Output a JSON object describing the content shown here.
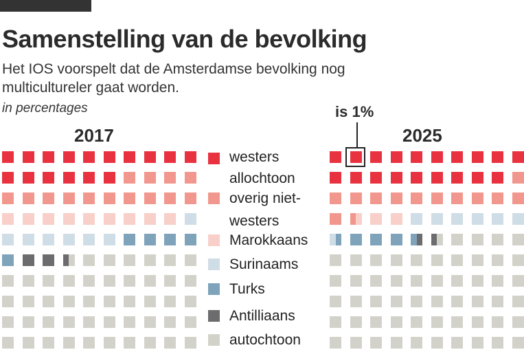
{
  "title": "Samenstelling van de bevolking",
  "subtitle_line1": "Het IOS voorspelt dat de Amsterdamse bevolking nog",
  "subtitle_line2": "multicultureler gaat worden.",
  "unit": "in percentages",
  "annotation": "is 1%",
  "colors": {
    "westers allochtoon": "#e8323f",
    "overig niet-westers": "#f2978d",
    "Marokkaans": "#f8cfc9",
    "Surinaams": "#cfdde6",
    "Turks": "#7ea3bb",
    "Antilliaans": "#6c6c6e",
    "autochtoon": "#d3d2ca"
  },
  "legend": [
    {
      "key": "westers allochtoon",
      "lines": [
        "westers",
        "allochtoon"
      ]
    },
    {
      "key": "overig niet-westers",
      "lines": [
        "overig niet-",
        "westers"
      ]
    },
    {
      "key": "Marokkaans",
      "lines": [
        "Marokkaans"
      ]
    },
    {
      "key": "Surinaams",
      "lines": [
        "Surinaams"
      ]
    },
    {
      "key": "Turks",
      "lines": [
        "Turks"
      ]
    },
    {
      "key": "Antilliaans",
      "lines": [
        "Antilliaans"
      ]
    },
    {
      "key": "autochtoon",
      "lines": [
        "autochtoon"
      ]
    }
  ],
  "chart_data": {
    "type": "waffle",
    "unit": "%",
    "categories": [
      "westers allochtoon",
      "overig niet-westers",
      "Marokkaans",
      "Surinaams",
      "Turks",
      "Antilliaans",
      "autochtoon"
    ],
    "series": [
      {
        "name": "2017",
        "values": [
          16,
          14,
          9,
          7,
          5,
          2.5,
          46.5
        ]
      },
      {
        "name": "2025",
        "values": [
          19,
          12.5,
          2.5,
          6.5,
          4,
          1,
          54.5
        ]
      }
    ]
  }
}
